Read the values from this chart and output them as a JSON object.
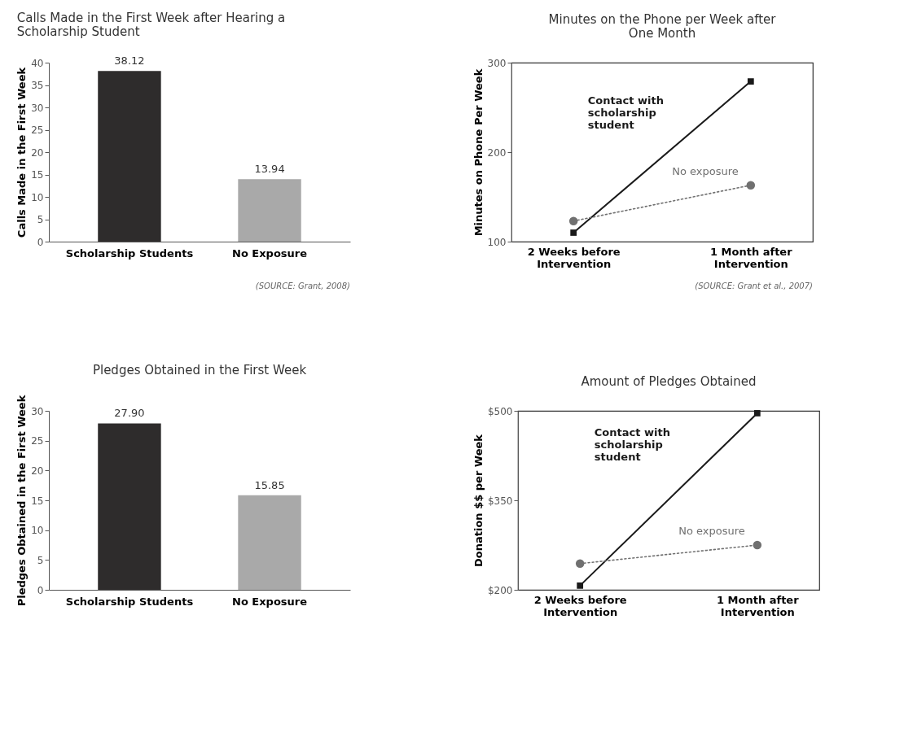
{
  "chart_data": [
    {
      "type": "bar",
      "title": "Calls Made in the First Week after Hearing a\nScholarship Student",
      "ylabel": "Calls Made in the First Week",
      "categories": [
        "Scholarship Students",
        "No Exposure"
      ],
      "values": [
        38.12,
        13.94
      ],
      "value_labels": [
        "38.12",
        "13.94"
      ],
      "colors": [
        "#2e2c2c",
        "#a9a9a9"
      ],
      "ylim": [
        0,
        40
      ],
      "yticks": [
        0,
        5,
        10,
        15,
        20,
        25,
        30,
        35,
        40
      ],
      "annotations": [
        "(SOURCE: Grant, 2008)"
      ]
    },
    {
      "type": "line",
      "title": "Minutes on the Phone per Week after\nOne Month",
      "ylabel": "Minutes on Phone Per Week",
      "categories": [
        "2 Weeks before\nIntervention",
        "1 Month after\nIntervention"
      ],
      "series": [
        {
          "name": "Contact with\nscholarship\nstudent",
          "color": "#1a1a1a",
          "values": [
            110,
            279
          ],
          "marker": "square",
          "line_style": "solid"
        },
        {
          "name": "No exposure",
          "color": "#707070",
          "values": [
            123,
            163
          ],
          "marker": "circle",
          "line_style": "dotted"
        }
      ],
      "ylim": [
        100,
        300
      ],
      "yticks": [
        100,
        200,
        300
      ],
      "annotations": [
        "(SOURCE: Grant et al., 2007)"
      ]
    },
    {
      "type": "bar",
      "title": "Pledges Obtained in the First Week",
      "ylabel": "Pledges Obtained in the First Week",
      "categories": [
        "Scholarship Students",
        "No Exposure"
      ],
      "values": [
        27.9,
        15.85
      ],
      "value_labels": [
        "27.90",
        "15.85"
      ],
      "colors": [
        "#2e2c2c",
        "#a9a9a9"
      ],
      "ylim": [
        0,
        30
      ],
      "yticks": [
        0,
        5,
        10,
        15,
        20,
        25,
        30
      ]
    },
    {
      "type": "line",
      "title": "Amount of Pledges Obtained",
      "ylabel": "Donation $$ per Week",
      "categories": [
        "2 Weeks before\nIntervention",
        "1 Month after\nIntervention"
      ],
      "series": [
        {
          "name": "Contact with\nscholarship\nstudent",
          "color": "#1a1a1a",
          "values": [
            207,
            496
          ],
          "marker": "square",
          "line_style": "solid"
        },
        {
          "name": "No exposure",
          "color": "#707070",
          "values": [
            244,
            275
          ],
          "marker": "circle",
          "line_style": "dotted"
        }
      ],
      "ylim": [
        200,
        500
      ],
      "yticks": [
        {
          "value": 200,
          "label": "$200"
        },
        {
          "value": 350,
          "label": "$350"
        },
        {
          "value": 500,
          "label": "$500"
        }
      ]
    }
  ]
}
